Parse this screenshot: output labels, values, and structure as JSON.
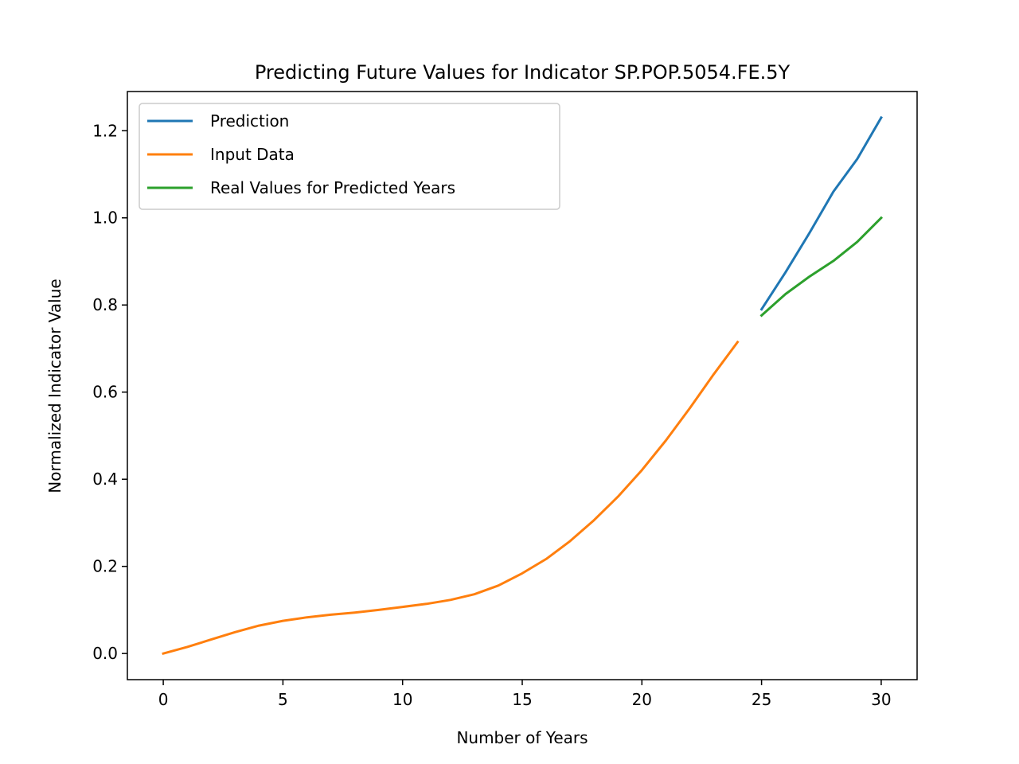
{
  "chart_data": {
    "type": "line",
    "title": "Predicting Future Values for Indicator SP.POP.5054.FE.5Y",
    "xlabel": "Number of Years",
    "ylabel": "Normalized Indicator Value",
    "xlim": [
      -1.5,
      31.5
    ],
    "ylim": [
      -0.06,
      1.29
    ],
    "xticks": [
      0,
      5,
      10,
      15,
      20,
      25,
      30
    ],
    "xtick_labels": [
      "0",
      "5",
      "10",
      "15",
      "20",
      "25",
      "30"
    ],
    "yticks": [
      0.0,
      0.2,
      0.4,
      0.6,
      0.8,
      1.0,
      1.2
    ],
    "ytick_labels": [
      "0.0",
      "0.2",
      "0.4",
      "0.6",
      "0.8",
      "1.0",
      "1.2"
    ],
    "grid": false,
    "legend": "upper-left",
    "series": [
      {
        "name": "Prediction",
        "color": "#1f77b4",
        "x": [
          25,
          26,
          27,
          28,
          29,
          30
        ],
        "y": [
          0.79,
          0.875,
          0.965,
          1.06,
          1.135,
          1.23
        ]
      },
      {
        "name": "Input Data",
        "color": "#ff7f0e",
        "x": [
          0,
          1,
          2,
          3,
          4,
          5,
          6,
          7,
          8,
          9,
          10,
          11,
          12,
          13,
          14,
          15,
          16,
          17,
          18,
          19,
          20,
          21,
          22,
          23,
          24
        ],
        "y": [
          0.0,
          0.015,
          0.032,
          0.049,
          0.064,
          0.075,
          0.083,
          0.089,
          0.094,
          0.1,
          0.107,
          0.114,
          0.123,
          0.136,
          0.156,
          0.184,
          0.217,
          0.258,
          0.306,
          0.36,
          0.421,
          0.489,
          0.563,
          0.641,
          0.715
        ]
      },
      {
        "name": "Real Values for Predicted Years",
        "color": "#2ca02c",
        "x": [
          25,
          26,
          27,
          28,
          29,
          30
        ],
        "y": [
          0.776,
          0.825,
          0.865,
          0.901,
          0.945,
          1.0
        ]
      }
    ]
  }
}
